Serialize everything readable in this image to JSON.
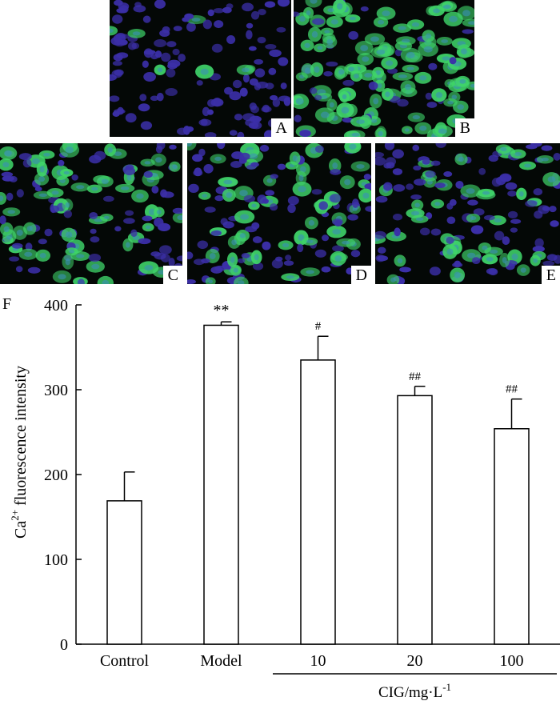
{
  "micrographs": [
    {
      "id": "p-a",
      "label": "A",
      "green_fraction": 0.05
    },
    {
      "id": "p-b",
      "label": "B",
      "green_fraction": 0.75
    },
    {
      "id": "p-c",
      "label": "C",
      "green_fraction": 0.45
    },
    {
      "id": "p-d",
      "label": "D",
      "green_fraction": 0.5
    },
    {
      "id": "p-e",
      "label": "E",
      "green_fraction": 0.3
    }
  ],
  "colors": {
    "nucleus": "#3b2fa8",
    "calcium": "#3fd46a",
    "background": "#040806"
  },
  "chart_data": {
    "type": "bar",
    "panel_label": "F",
    "categories": [
      "Control",
      "Model",
      "10",
      "20",
      "100"
    ],
    "values": [
      169,
      376,
      335,
      293,
      254
    ],
    "errors": [
      34,
      4,
      28,
      11,
      35
    ],
    "annotations": [
      "",
      "**",
      "#",
      "##",
      "##"
    ],
    "ylabel_base": "Ca",
    "ylabel_sup": "2+",
    "ylabel_rest": " fluorescence intensity",
    "yticks": [
      0,
      100,
      200,
      300,
      400
    ],
    "ylim": [
      0,
      400
    ],
    "group_label_base": "CIG/mg·L",
    "group_label_sup": "-1",
    "group_categories": [
      2,
      3,
      4
    ],
    "bar_fill": "#ffffff",
    "bar_stroke": "#000000"
  }
}
